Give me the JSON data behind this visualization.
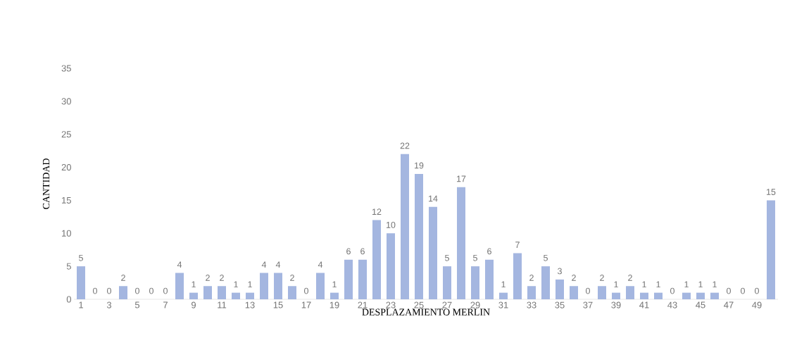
{
  "chart_data": {
    "type": "bar",
    "xlabel": "DESPLAZAMIENTO MERLIN",
    "ylabel": "CANTIDAD",
    "categories": [
      "1",
      null,
      "3",
      null,
      "5",
      null,
      "7",
      null,
      "9",
      null,
      "11",
      null,
      "13",
      null,
      "15",
      null,
      "17",
      null,
      "19",
      null,
      "21",
      null,
      "23",
      null,
      "25",
      null,
      "27",
      null,
      "29",
      null,
      "31",
      null,
      "33",
      null,
      "35",
      null,
      "37",
      null,
      "39",
      null,
      "41",
      null,
      "43",
      null,
      "45",
      null,
      "47",
      null,
      "49",
      null
    ],
    "values": [
      5,
      0,
      0,
      2,
      0,
      0,
      0,
      4,
      1,
      2,
      2,
      1,
      1,
      4,
      4,
      2,
      0,
      4,
      1,
      6,
      6,
      12,
      10,
      22,
      19,
      14,
      5,
      17,
      5,
      6,
      1,
      7,
      2,
      5,
      3,
      2,
      0,
      2,
      1,
      2,
      1,
      1,
      0,
      1,
      1,
      1,
      0,
      0,
      0,
      15
    ],
    "color": "#a4b6e0",
    "ylim": [
      0,
      35
    ],
    "yticks": [
      0,
      5,
      10,
      15,
      20,
      25,
      30,
      35
    ],
    "data_labels": true,
    "grid": false
  }
}
